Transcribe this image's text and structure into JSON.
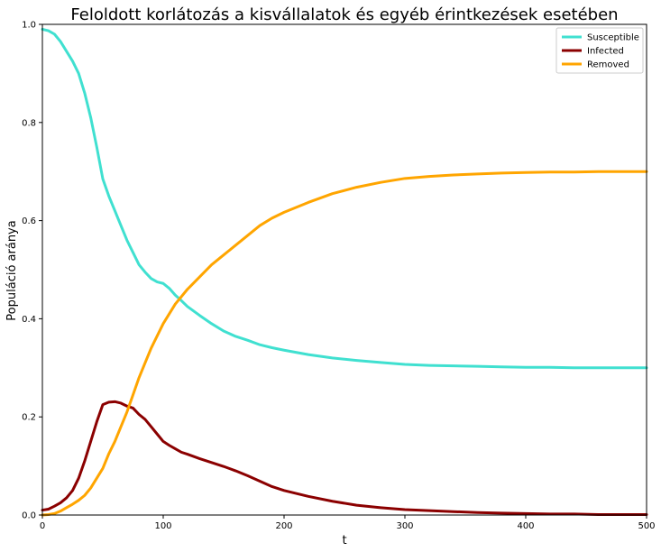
{
  "chart_data": {
    "type": "line",
    "title": "Feloldott korlátozás a kisvállalatok és egyéb érintkezések esetében",
    "xlabel": "t",
    "ylabel": "Populáció aránya",
    "xlim": [
      0,
      500
    ],
    "ylim": [
      0,
      1.0
    ],
    "xticks": [
      0,
      100,
      200,
      300,
      400,
      500
    ],
    "yticks": [
      0.0,
      0.2,
      0.4,
      0.6,
      0.8,
      1.0
    ],
    "xtick_labels": [
      "0",
      "100",
      "200",
      "300",
      "400",
      "500"
    ],
    "ytick_labels": [
      "0.0",
      "0.2",
      "0.4",
      "0.6",
      "0.8",
      "1.0"
    ],
    "grid": false,
    "legend_position": "top-right",
    "series": [
      {
        "name": "Susceptible",
        "color": "#40e0d0",
        "x": [
          0,
          5,
          10,
          15,
          20,
          25,
          30,
          35,
          40,
          45,
          50,
          55,
          60,
          65,
          70,
          75,
          80,
          85,
          90,
          95,
          100,
          105,
          110,
          115,
          120,
          130,
          140,
          150,
          160,
          170,
          180,
          190,
          200,
          220,
          240,
          260,
          280,
          300,
          320,
          340,
          360,
          380,
          400,
          420,
          440,
          460,
          480,
          500
        ],
        "y": [
          0.99,
          0.987,
          0.98,
          0.965,
          0.945,
          0.925,
          0.9,
          0.86,
          0.81,
          0.75,
          0.685,
          0.65,
          0.62,
          0.59,
          0.56,
          0.535,
          0.51,
          0.495,
          0.482,
          0.475,
          0.472,
          0.462,
          0.448,
          0.437,
          0.425,
          0.407,
          0.39,
          0.375,
          0.364,
          0.356,
          0.347,
          0.341,
          0.336,
          0.327,
          0.32,
          0.315,
          0.311,
          0.307,
          0.305,
          0.304,
          0.303,
          0.302,
          0.301,
          0.301,
          0.3,
          0.3,
          0.3,
          0.3
        ]
      },
      {
        "name": "Infected",
        "color": "#8b0000",
        "x": [
          0,
          5,
          10,
          15,
          20,
          25,
          30,
          35,
          40,
          45,
          50,
          55,
          60,
          65,
          70,
          75,
          80,
          85,
          90,
          95,
          100,
          105,
          110,
          115,
          120,
          130,
          140,
          150,
          160,
          170,
          180,
          190,
          200,
          220,
          240,
          260,
          280,
          300,
          320,
          340,
          360,
          380,
          400,
          420,
          440,
          460,
          480,
          500
        ],
        "y": [
          0.01,
          0.012,
          0.018,
          0.025,
          0.035,
          0.05,
          0.075,
          0.11,
          0.15,
          0.19,
          0.225,
          0.23,
          0.231,
          0.228,
          0.222,
          0.218,
          0.205,
          0.195,
          0.18,
          0.165,
          0.15,
          0.142,
          0.135,
          0.128,
          0.124,
          0.115,
          0.107,
          0.099,
          0.09,
          0.08,
          0.069,
          0.058,
          0.05,
          0.038,
          0.028,
          0.02,
          0.015,
          0.011,
          0.009,
          0.007,
          0.005,
          0.004,
          0.003,
          0.002,
          0.002,
          0.001,
          0.001,
          0.001
        ]
      },
      {
        "name": "Removed",
        "color": "#ffa500",
        "x": [
          0,
          5,
          10,
          15,
          20,
          25,
          30,
          35,
          40,
          45,
          50,
          55,
          60,
          65,
          70,
          75,
          80,
          85,
          90,
          95,
          100,
          105,
          110,
          115,
          120,
          130,
          140,
          150,
          160,
          170,
          180,
          190,
          200,
          220,
          240,
          260,
          280,
          300,
          320,
          340,
          360,
          380,
          400,
          420,
          440,
          460,
          480,
          500
        ],
        "y": [
          0.0,
          0.001,
          0.003,
          0.008,
          0.015,
          0.022,
          0.03,
          0.04,
          0.055,
          0.075,
          0.095,
          0.125,
          0.15,
          0.18,
          0.21,
          0.245,
          0.28,
          0.31,
          0.34,
          0.365,
          0.39,
          0.41,
          0.43,
          0.445,
          0.46,
          0.485,
          0.51,
          0.53,
          0.55,
          0.57,
          0.59,
          0.605,
          0.617,
          0.637,
          0.655,
          0.668,
          0.678,
          0.686,
          0.69,
          0.693,
          0.695,
          0.697,
          0.698,
          0.699,
          0.699,
          0.7,
          0.7,
          0.7
        ]
      }
    ]
  }
}
